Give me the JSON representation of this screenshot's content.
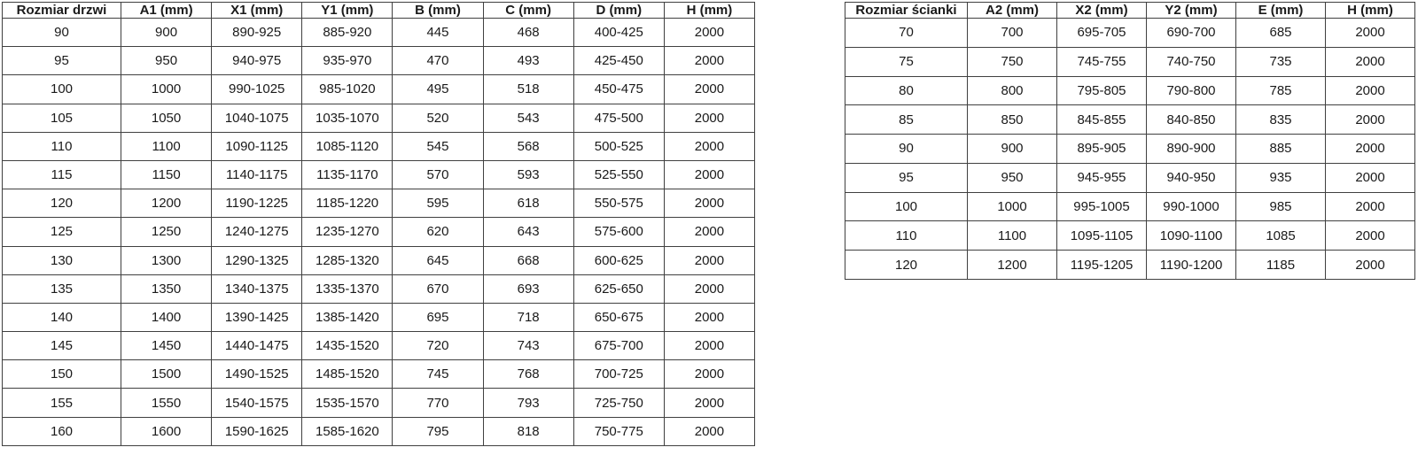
{
  "colors": {
    "background": "#ffffff",
    "border": "#404040",
    "text": "#1a1a1a"
  },
  "tables": [
    {
      "id": "door-size-table",
      "headers": [
        "Rozmiar drzwi",
        "A1 (mm)",
        "X1 (mm)",
        "Y1 (mm)",
        "B (mm)",
        "C (mm)",
        "D (mm)",
        "H (mm)"
      ],
      "rows": [
        [
          "90",
          "900",
          "890-925",
          "885-920",
          "445",
          "468",
          "400-425",
          "2000"
        ],
        [
          "95",
          "950",
          "940-975",
          "935-970",
          "470",
          "493",
          "425-450",
          "2000"
        ],
        [
          "100",
          "1000",
          "990-1025",
          "985-1020",
          "495",
          "518",
          "450-475",
          "2000"
        ],
        [
          "105",
          "1050",
          "1040-1075",
          "1035-1070",
          "520",
          "543",
          "475-500",
          "2000"
        ],
        [
          "110",
          "1100",
          "1090-1125",
          "1085-1120",
          "545",
          "568",
          "500-525",
          "2000"
        ],
        [
          "115",
          "1150",
          "1140-1175",
          "1135-1170",
          "570",
          "593",
          "525-550",
          "2000"
        ],
        [
          "120",
          "1200",
          "1190-1225",
          "1185-1220",
          "595",
          "618",
          "550-575",
          "2000"
        ],
        [
          "125",
          "1250",
          "1240-1275",
          "1235-1270",
          "620",
          "643",
          "575-600",
          "2000"
        ],
        [
          "130",
          "1300",
          "1290-1325",
          "1285-1320",
          "645",
          "668",
          "600-625",
          "2000"
        ],
        [
          "135",
          "1350",
          "1340-1375",
          "1335-1370",
          "670",
          "693",
          "625-650",
          "2000"
        ],
        [
          "140",
          "1400",
          "1390-1425",
          "1385-1420",
          "695",
          "718",
          "650-675",
          "2000"
        ],
        [
          "145",
          "1450",
          "1440-1475",
          "1435-1520",
          "720",
          "743",
          "675-700",
          "2000"
        ],
        [
          "150",
          "1500",
          "1490-1525",
          "1485-1520",
          "745",
          "768",
          "700-725",
          "2000"
        ],
        [
          "155",
          "1550",
          "1540-1575",
          "1535-1570",
          "770",
          "793",
          "725-750",
          "2000"
        ],
        [
          "160",
          "1600",
          "1590-1625",
          "1585-1620",
          "795",
          "818",
          "750-775",
          "2000"
        ]
      ]
    },
    {
      "id": "wall-size-table",
      "headers": [
        "Rozmiar ścianki",
        "A2 (mm)",
        "X2 (mm)",
        "Y2 (mm)",
        "E (mm)",
        "H (mm)"
      ],
      "rows": [
        [
          "70",
          "700",
          "695-705",
          "690-700",
          "685",
          "2000"
        ],
        [
          "75",
          "750",
          "745-755",
          "740-750",
          "735",
          "2000"
        ],
        [
          "80",
          "800",
          "795-805",
          "790-800",
          "785",
          "2000"
        ],
        [
          "85",
          "850",
          "845-855",
          "840-850",
          "835",
          "2000"
        ],
        [
          "90",
          "900",
          "895-905",
          "890-900",
          "885",
          "2000"
        ],
        [
          "95",
          "950",
          "945-955",
          "940-950",
          "935",
          "2000"
        ],
        [
          "100",
          "1000",
          "995-1005",
          "990-1000",
          "985",
          "2000"
        ],
        [
          "110",
          "1100",
          "1095-1105",
          "1090-1100",
          "1085",
          "2000"
        ],
        [
          "120",
          "1200",
          "1195-1205",
          "1190-1200",
          "1185",
          "2000"
        ]
      ]
    }
  ]
}
